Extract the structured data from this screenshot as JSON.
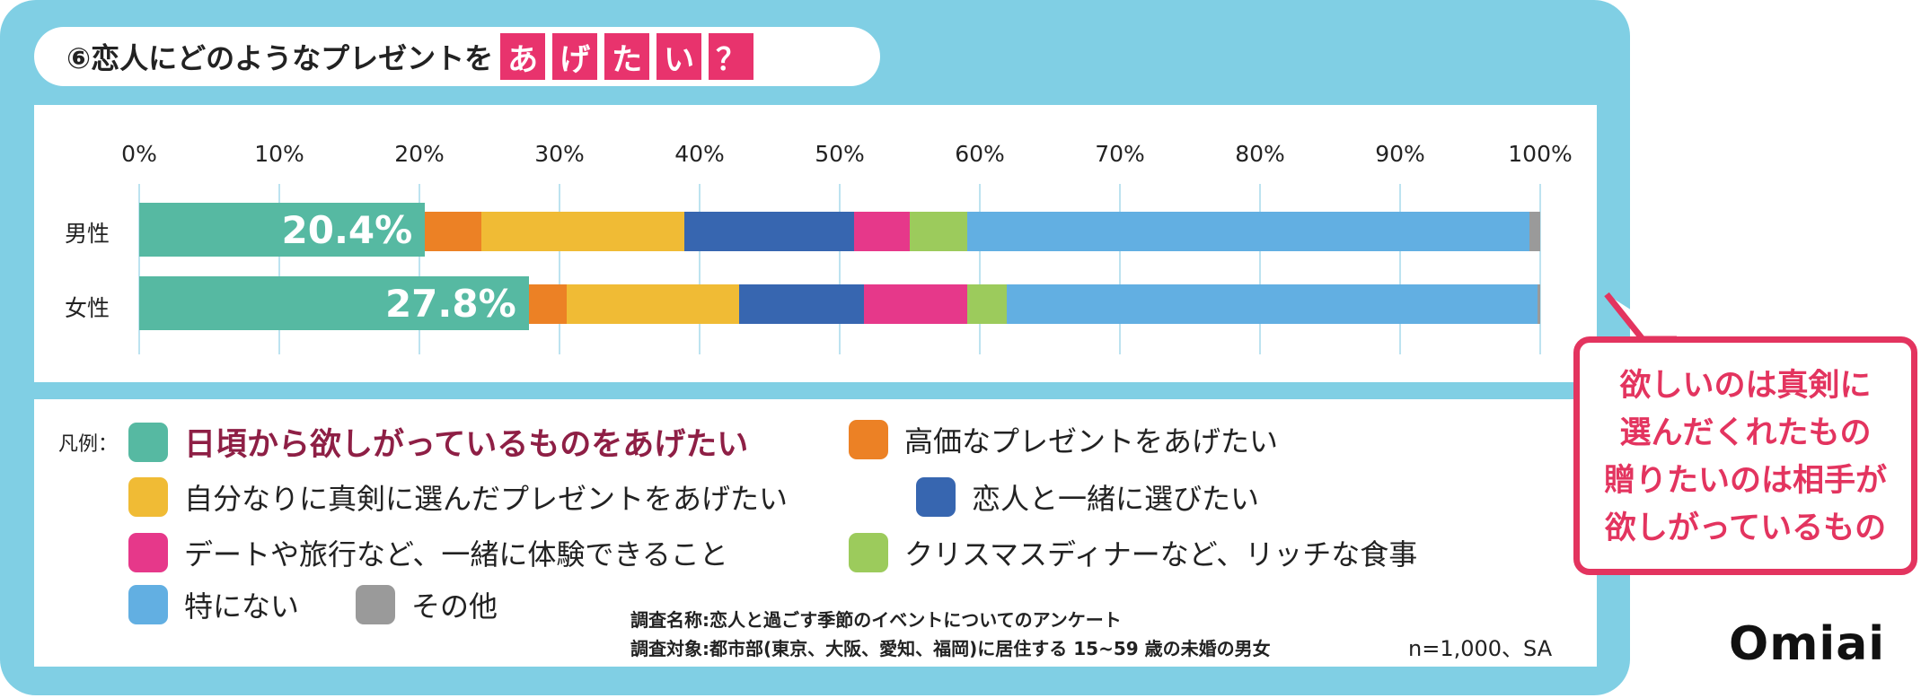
{
  "title": {
    "prefix": "⑥恋人にどのようなプレゼントを",
    "highlight": [
      "あ",
      "げ",
      "た",
      "い",
      "？"
    ]
  },
  "chart_data": {
    "type": "bar",
    "stacked": true,
    "orientation": "horizontal",
    "categories": [
      "男性",
      "女性"
    ],
    "xlim": [
      0,
      100
    ],
    "ticks": [
      "0%",
      "10%",
      "20%",
      "30%",
      "40%",
      "50%",
      "60%",
      "70%",
      "80%",
      "90%",
      "100%"
    ],
    "grid": true,
    "series": [
      {
        "name": "日頃から欲しがっているものをあげたい",
        "color": "#56b9a2",
        "values": [
          20.4,
          27.8
        ],
        "labels": [
          "20.4%",
          "27.8%"
        ]
      },
      {
        "name": "高価なプレゼントをあげたい",
        "color": "#ec8125",
        "values": [
          4.0,
          2.7
        ]
      },
      {
        "name": "自分なりに真剣に選んだプレゼントをあげたい",
        "color": "#f0bb35",
        "values": [
          14.5,
          12.3
        ]
      },
      {
        "name": "恋人と一緒に選びたい",
        "color": "#3766b0",
        "values": [
          12.1,
          8.9
        ]
      },
      {
        "name": "デートや旅行など、一緒に体験できること",
        "color": "#e6388a",
        "values": [
          4.0,
          7.4
        ]
      },
      {
        "name": "クリスマスディナーなど、リッチな食事",
        "color": "#9ccb5c",
        "values": [
          4.1,
          2.8
        ]
      },
      {
        "name": "特にない",
        "color": "#62afe2",
        "values": [
          40.1,
          37.9
        ]
      },
      {
        "name": "その他",
        "color": "#9a9a9a",
        "values": [
          0.8,
          0.2
        ]
      }
    ]
  },
  "legend": {
    "label": "凡例："
  },
  "notes": {
    "survey_name": "調査名称:恋人と過ごす季節のイベントについてのアンケート",
    "survey_target": "調査対象:都市部(東京、大阪、愛知、福岡)に居住する 15~59 歳の未婚の男女",
    "sample": "n=1,000、SA"
  },
  "callout": {
    "lines": [
      "欲しいのは真剣に",
      "選んだくれたもの",
      "贈りたいのは相手が",
      "欲しがっているもの"
    ]
  },
  "logo": "Omiai"
}
